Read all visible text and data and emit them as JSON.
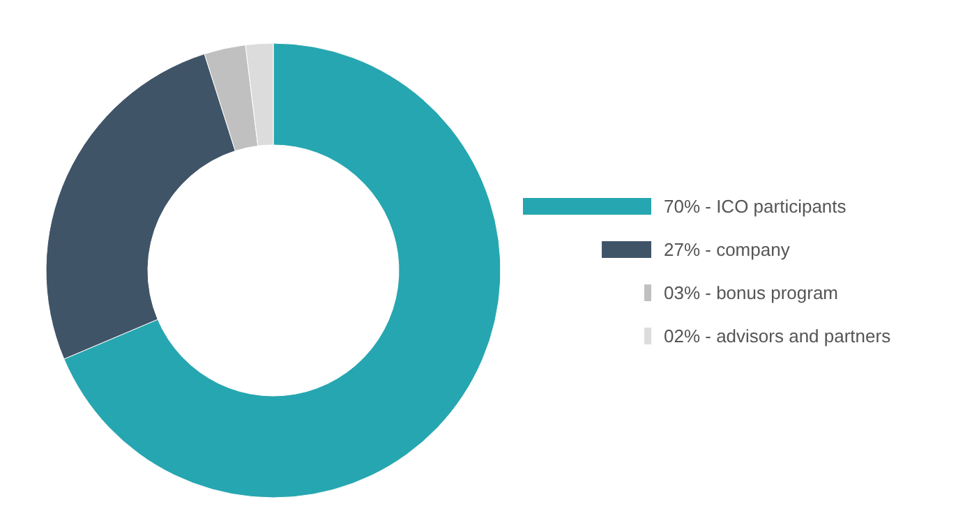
{
  "chart_data": {
    "type": "donut",
    "categories": [
      "70% - ICO participants",
      "27% - company",
      "03% - bonus program",
      "02% - advisors and partners"
    ],
    "values": [
      70,
      27,
      3,
      2
    ],
    "colors": [
      "#26a6b0",
      "#405468",
      "#c0c0c0",
      "#dcdcdc"
    ],
    "legend": "right"
  }
}
